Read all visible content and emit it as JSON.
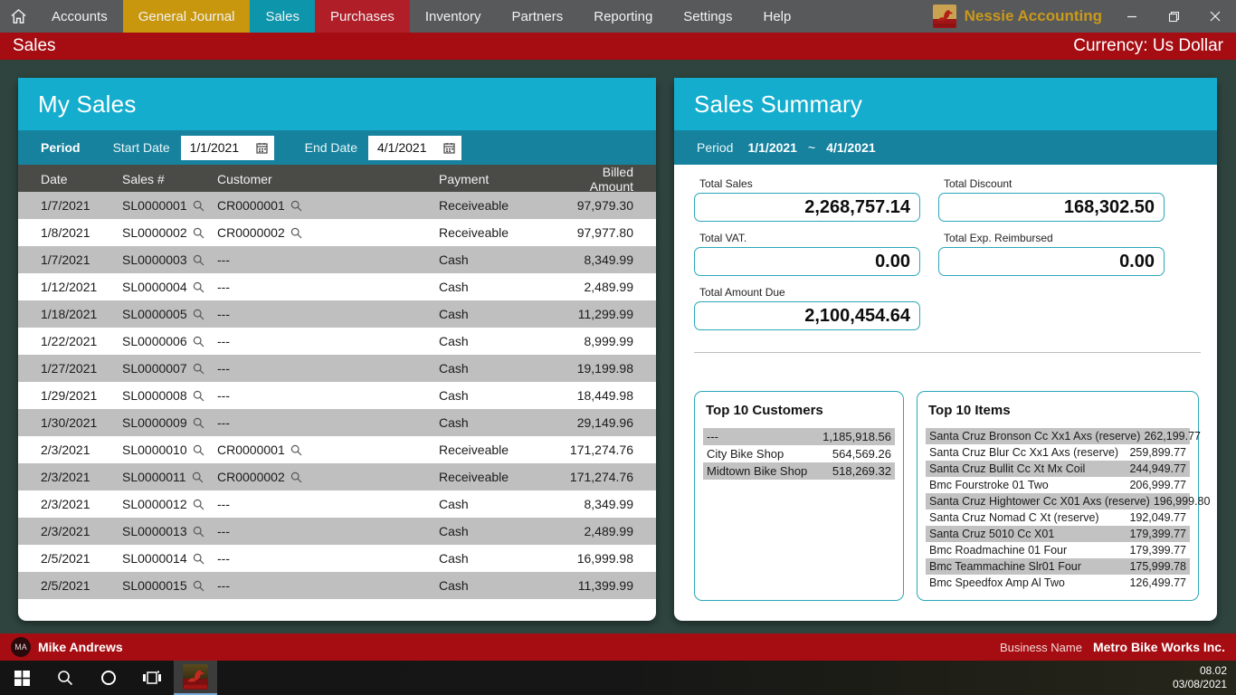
{
  "window": {
    "title": "Nessie Accounting"
  },
  "nav": {
    "items": [
      {
        "label": "Accounts",
        "bg": ""
      },
      {
        "label": "General Journal",
        "bg": "#C8970D"
      },
      {
        "label": "Sales",
        "bg": "#0D95AB"
      },
      {
        "label": "Purchases",
        "bg": "#B01E28"
      },
      {
        "label": "Inventory",
        "bg": ""
      },
      {
        "label": "Partners",
        "bg": ""
      },
      {
        "label": "Reporting",
        "bg": ""
      },
      {
        "label": "Settings",
        "bg": ""
      },
      {
        "label": "Help",
        "bg": ""
      }
    ]
  },
  "page_bar": {
    "title": "Sales",
    "currency": "Currency: Us Dollar"
  },
  "my_sales": {
    "title": "My Sales",
    "period_label": "Period",
    "start_date_label": "Start Date",
    "start_date": "1/1/2021",
    "end_date_label": "End Date",
    "end_date": "4/1/2021",
    "columns": [
      "Date",
      "Sales #",
      "Customer",
      "Payment",
      "Billed Amount"
    ],
    "rows": [
      {
        "date": "1/7/2021",
        "sales_no": "SL0000001",
        "customer": "CR0000001",
        "payment": "Receiveable",
        "amount": "97,979.30"
      },
      {
        "date": "1/8/2021",
        "sales_no": "SL0000002",
        "customer": "CR0000002",
        "payment": "Receiveable",
        "amount": "97,977.80"
      },
      {
        "date": "1/7/2021",
        "sales_no": "SL0000003",
        "customer": "---",
        "payment": "Cash",
        "amount": "8,349.99"
      },
      {
        "date": "1/12/2021",
        "sales_no": "SL0000004",
        "customer": "---",
        "payment": "Cash",
        "amount": "2,489.99"
      },
      {
        "date": "1/18/2021",
        "sales_no": "SL0000005",
        "customer": "---",
        "payment": "Cash",
        "amount": "11,299.99"
      },
      {
        "date": "1/22/2021",
        "sales_no": "SL0000006",
        "customer": "---",
        "payment": "Cash",
        "amount": "8,999.99"
      },
      {
        "date": "1/27/2021",
        "sales_no": "SL0000007",
        "customer": "---",
        "payment": "Cash",
        "amount": "19,199.98"
      },
      {
        "date": "1/29/2021",
        "sales_no": "SL0000008",
        "customer": "---",
        "payment": "Cash",
        "amount": "18,449.98"
      },
      {
        "date": "1/30/2021",
        "sales_no": "SL0000009",
        "customer": "---",
        "payment": "Cash",
        "amount": "29,149.96"
      },
      {
        "date": "2/3/2021",
        "sales_no": "SL0000010",
        "customer": "CR0000001",
        "payment": "Receiveable",
        "amount": "171,274.76"
      },
      {
        "date": "2/3/2021",
        "sales_no": "SL0000011",
        "customer": "CR0000002",
        "payment": "Receiveable",
        "amount": "171,274.76"
      },
      {
        "date": "2/3/2021",
        "sales_no": "SL0000012",
        "customer": "---",
        "payment": "Cash",
        "amount": "8,349.99"
      },
      {
        "date": "2/3/2021",
        "sales_no": "SL0000013",
        "customer": "---",
        "payment": "Cash",
        "amount": "2,489.99"
      },
      {
        "date": "2/5/2021",
        "sales_no": "SL0000014",
        "customer": "---",
        "payment": "Cash",
        "amount": "16,999.98"
      },
      {
        "date": "2/5/2021",
        "sales_no": "SL0000015",
        "customer": "---",
        "payment": "Cash",
        "amount": "11,399.99"
      }
    ]
  },
  "summary": {
    "title": "Sales Summary",
    "period_label": "Period",
    "period_start": "1/1/2021",
    "period_separator": "~",
    "period_end": "4/1/2021",
    "fields": [
      {
        "label": "Total Sales",
        "value": "2,268,757.14"
      },
      {
        "label": "Total Discount",
        "value": "168,302.50"
      },
      {
        "label": "Total VAT.",
        "value": "0.00"
      },
      {
        "label": "Total Exp. Reimbursed",
        "value": "0.00"
      },
      {
        "label": "Total Amount Due",
        "value": "2,100,454.64"
      }
    ],
    "top_customers": {
      "title": "Top 10 Customers",
      "rows": [
        {
          "name": "---",
          "amount": "1,185,918.56"
        },
        {
          "name": "City Bike Shop",
          "amount": "564,569.26"
        },
        {
          "name": "Midtown Bike Shop",
          "amount": "518,269.32"
        }
      ]
    },
    "top_items": {
      "title": "Top 10 Items",
      "rows": [
        {
          "name": "Santa Cruz Bronson Cc Xx1 Axs (reserve)",
          "amount": "262,199.77"
        },
        {
          "name": "Santa Cruz Blur Cc Xx1 Axs (reserve)",
          "amount": "259,899.77"
        },
        {
          "name": "Santa Cruz Bullit Cc Xt Mx Coil",
          "amount": "244,949.77"
        },
        {
          "name": "Bmc Fourstroke 01 Two",
          "amount": "206,999.77"
        },
        {
          "name": "Santa Cruz Hightower Cc X01 Axs (reserve)",
          "amount": "196,999.80"
        },
        {
          "name": "Santa Cruz Nomad C Xt (reserve)",
          "amount": "192,049.77"
        },
        {
          "name": "Santa Cruz 5010 Cc X01",
          "amount": "179,399.77"
        },
        {
          "name": "Bmc Roadmachine 01 Four",
          "amount": "179,399.77"
        },
        {
          "name": "Bmc Teammachine Slr01 Four",
          "amount": "175,999.78"
        },
        {
          "name": "Bmc Speedfox Amp Al Two",
          "amount": "126,499.77"
        }
      ]
    }
  },
  "status_bar": {
    "user_initials": "MA",
    "user_name": "Mike Andrews",
    "business_label": "Business Name",
    "business_name": "Metro Bike Works Inc."
  },
  "taskbar": {
    "time": "08.02",
    "date": "03/08/2021"
  },
  "colors": {
    "header_blue": "#14ADCE",
    "period_teal": "#16829E",
    "bar_red": "#A50D12",
    "row_gray": "#BFBFBF",
    "background": "#2F443F"
  }
}
